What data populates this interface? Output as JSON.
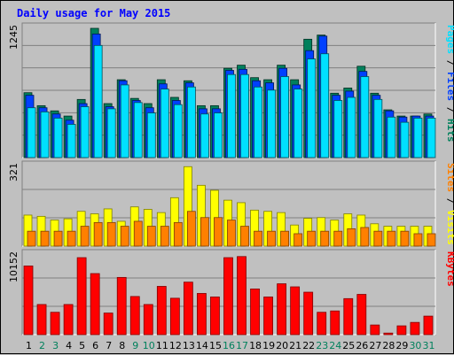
{
  "title": "Daily usage for May 2015",
  "colors": {
    "background": "#c0c0c0",
    "grid": "#808080",
    "hits": "#00805c",
    "files": "#0040ff",
    "pages": "#00e0ff",
    "visits": "#ffff00",
    "sites": "#ff8000",
    "kbytes": "#ff0000",
    "weekday_label": "#000000",
    "weekend_label": "#00805c"
  },
  "chart_data": [
    {
      "type": "bar",
      "name": "hits-files-pages",
      "ytick": "1245",
      "ymax": 1245,
      "categories": [
        "1",
        "2",
        "3",
        "4",
        "5",
        "6",
        "7",
        "8",
        "9",
        "10",
        "11",
        "12",
        "13",
        "14",
        "15",
        "16",
        "17",
        "18",
        "19",
        "20",
        "21",
        "22",
        "23",
        "24",
        "25",
        "26",
        "27",
        "28",
        "29",
        "30",
        "31"
      ],
      "legend": [
        {
          "label": "Hits",
          "color": "#00805c"
        },
        {
          "label": "Files",
          "color": "#0040ff"
        },
        {
          "label": "Pages",
          "color": "#00e0ff"
        }
      ],
      "series": [
        {
          "name": "Hits",
          "values": [
            625,
            500,
            450,
            400,
            560,
            1245,
            520,
            750,
            570,
            520,
            750,
            580,
            740,
            500,
            500,
            860,
            890,
            770,
            750,
            890,
            750,
            1140,
            1180,
            620,
            670,
            880,
            620,
            460,
            400,
            400,
            420
          ]
        },
        {
          "name": "Files",
          "values": [
            600,
            480,
            420,
            360,
            520,
            1190,
            490,
            740,
            550,
            480,
            710,
            550,
            720,
            470,
            470,
            840,
            850,
            740,
            720,
            860,
            700,
            1030,
            1170,
            600,
            640,
            830,
            600,
            450,
            390,
            400,
            400
          ]
        },
        {
          "name": "Pages",
          "values": [
            480,
            440,
            380,
            320,
            490,
            1080,
            470,
            700,
            530,
            430,
            660,
            510,
            680,
            420,
            430,
            800,
            800,
            680,
            650,
            780,
            660,
            950,
            1000,
            550,
            580,
            780,
            560,
            390,
            340,
            380,
            380
          ]
        }
      ]
    },
    {
      "type": "bar",
      "name": "visits-sites",
      "ytick": "321",
      "ymax": 321,
      "legend": [
        {
          "label": "Visits",
          "color": "#ffff00"
        },
        {
          "label": "Sites",
          "color": "#ff8000"
        }
      ],
      "series": [
        {
          "name": "Visits",
          "values": [
            125,
            120,
            105,
            110,
            140,
            130,
            150,
            100,
            158,
            148,
            135,
            195,
            320,
            245,
            225,
            185,
            175,
            145,
            140,
            135,
            85,
            112,
            115,
            105,
            130,
            125,
            90,
            80,
            80,
            80,
            80
          ]
        },
        {
          "name": "Sites",
          "values": [
            60,
            60,
            60,
            60,
            80,
            95,
            95,
            80,
            100,
            80,
            80,
            95,
            140,
            115,
            115,
            105,
            80,
            60,
            60,
            60,
            50,
            60,
            60,
            60,
            70,
            75,
            60,
            60,
            60,
            50,
            50
          ]
        }
      ]
    },
    {
      "type": "bar",
      "name": "kbytes",
      "ytick": "10152",
      "ymax": 10152,
      "legend": [
        {
          "label": "KBytes",
          "color": "#ff0000"
        }
      ],
      "series": [
        {
          "name": "KBytes",
          "values": [
            8750,
            3840,
            2850,
            3840,
            9810,
            7780,
            2750,
            7290,
            4860,
            3840,
            6150,
            4640,
            6690,
            5250,
            4800,
            9810,
            9950,
            5820,
            4800,
            6480,
            6090,
            5410,
            2850,
            3020,
            4590,
            5130,
            1230,
            200,
            1120,
            1560,
            2360
          ]
        }
      ]
    }
  ],
  "weekend_days": [
    2,
    3,
    9,
    10,
    16,
    17,
    23,
    24,
    30,
    31
  ]
}
